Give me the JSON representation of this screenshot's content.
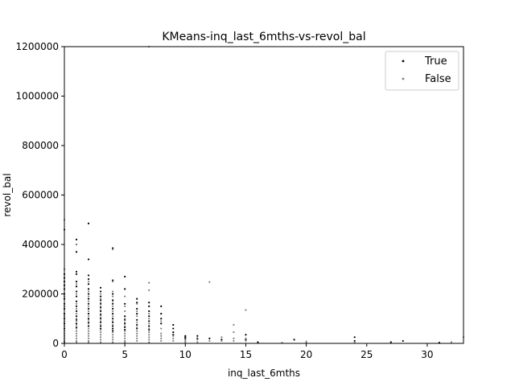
{
  "chart_data": {
    "type": "scatter",
    "title": "KMeans-inq_last_6mths-vs-revol_bal",
    "xlabel": "inq_last_6mths",
    "ylabel": "revol_bal",
    "xlim": [
      0,
      33
    ],
    "ylim": [
      0,
      1200000
    ],
    "x_ticks": [
      0,
      5,
      10,
      15,
      20,
      25,
      30
    ],
    "y_ticks": [
      0,
      200000,
      400000,
      600000,
      800000,
      1000000,
      1200000
    ],
    "x_tick_labels": [
      "0",
      "5",
      "10",
      "15",
      "20",
      "25",
      "30"
    ],
    "y_tick_labels": [
      "0",
      "200000",
      "400000",
      "600000",
      "800000",
      "1000000",
      "1200000"
    ],
    "grid": false,
    "legend_position": "top-right",
    "series": [
      {
        "name": "True",
        "color": "#000000",
        "points": [
          [
            0,
            460000
          ],
          [
            0,
            280000
          ],
          [
            0,
            265000
          ],
          [
            0,
            250000
          ],
          [
            0,
            235000
          ],
          [
            0,
            220000
          ],
          [
            0,
            200000
          ],
          [
            0,
            180000
          ],
          [
            0,
            160000
          ],
          [
            0,
            140000
          ],
          [
            0,
            120000
          ],
          [
            0,
            100000
          ],
          [
            0,
            80000
          ],
          [
            0,
            60000
          ],
          [
            1,
            420000
          ],
          [
            1,
            400000
          ],
          [
            1,
            370000
          ],
          [
            1,
            290000
          ],
          [
            1,
            280000
          ],
          [
            1,
            250000
          ],
          [
            1,
            230000
          ],
          [
            1,
            210000
          ],
          [
            1,
            190000
          ],
          [
            1,
            170000
          ],
          [
            1,
            150000
          ],
          [
            1,
            130000
          ],
          [
            1,
            110000
          ],
          [
            1,
            95000
          ],
          [
            1,
            80000
          ],
          [
            1,
            65000
          ],
          [
            2,
            485000
          ],
          [
            2,
            340000
          ],
          [
            2,
            275000
          ],
          [
            2,
            260000
          ],
          [
            2,
            240000
          ],
          [
            2,
            220000
          ],
          [
            2,
            200000
          ],
          [
            2,
            180000
          ],
          [
            2,
            160000
          ],
          [
            2,
            140000
          ],
          [
            2,
            120000
          ],
          [
            2,
            100000
          ],
          [
            2,
            85000
          ],
          [
            2,
            70000
          ],
          [
            3,
            225000
          ],
          [
            3,
            210000
          ],
          [
            3,
            190000
          ],
          [
            3,
            175000
          ],
          [
            3,
            160000
          ],
          [
            3,
            145000
          ],
          [
            3,
            130000
          ],
          [
            3,
            115000
          ],
          [
            3,
            100000
          ],
          [
            3,
            85000
          ],
          [
            3,
            70000
          ],
          [
            3,
            60000
          ],
          [
            4,
            385000
          ],
          [
            4,
            255000
          ],
          [
            4,
            200000
          ],
          [
            4,
            175000
          ],
          [
            4,
            160000
          ],
          [
            4,
            140000
          ],
          [
            4,
            120000
          ],
          [
            4,
            100000
          ],
          [
            4,
            85000
          ],
          [
            4,
            70000
          ],
          [
            4,
            60000
          ],
          [
            4,
            50000
          ],
          [
            5,
            270000
          ],
          [
            5,
            220000
          ],
          [
            5,
            160000
          ],
          [
            5,
            110000
          ],
          [
            5,
            95000
          ],
          [
            5,
            80000
          ],
          [
            5,
            65000
          ],
          [
            5,
            55000
          ],
          [
            6,
            180000
          ],
          [
            6,
            165000
          ],
          [
            6,
            140000
          ],
          [
            6,
            120000
          ],
          [
            6,
            95000
          ],
          [
            6,
            75000
          ],
          [
            6,
            60000
          ],
          [
            7,
            165000
          ],
          [
            7,
            150000
          ],
          [
            7,
            130000
          ],
          [
            7,
            110000
          ],
          [
            7,
            90000
          ],
          [
            7,
            70000
          ],
          [
            7,
            55000
          ],
          [
            8,
            150000
          ],
          [
            8,
            120000
          ],
          [
            8,
            100000
          ],
          [
            8,
            80000
          ],
          [
            9,
            75000
          ],
          [
            9,
            60000
          ],
          [
            9,
            45000
          ],
          [
            9,
            35000
          ],
          [
            10,
            30000
          ],
          [
            10,
            25000
          ],
          [
            10,
            20000
          ],
          [
            11,
            30000
          ],
          [
            11,
            20000
          ],
          [
            12,
            20000
          ],
          [
            13,
            15000
          ],
          [
            15,
            35000
          ],
          [
            15,
            15000
          ],
          [
            16,
            5000
          ],
          [
            19,
            15000
          ],
          [
            24,
            25000
          ],
          [
            24,
            10000
          ],
          [
            27,
            5000
          ],
          [
            28,
            10000
          ],
          [
            31,
            3000
          ]
        ]
      },
      {
        "name": "False",
        "color": "#808080",
        "points": [
          [
            0,
            500000
          ],
          [
            0,
            300000
          ],
          [
            0,
            190000
          ],
          [
            0,
            150000
          ],
          [
            0,
            110000
          ],
          [
            0,
            90000
          ],
          [
            0,
            70000
          ],
          [
            0,
            50000
          ],
          [
            0,
            40000
          ],
          [
            0,
            30000
          ],
          [
            0,
            20000
          ],
          [
            0,
            10000
          ],
          [
            0,
            5000
          ],
          [
            1,
            400000
          ],
          [
            1,
            240000
          ],
          [
            1,
            200000
          ],
          [
            1,
            160000
          ],
          [
            1,
            140000
          ],
          [
            1,
            120000
          ],
          [
            1,
            100000
          ],
          [
            1,
            90000
          ],
          [
            1,
            75000
          ],
          [
            1,
            60000
          ],
          [
            1,
            50000
          ],
          [
            1,
            40000
          ],
          [
            1,
            30000
          ],
          [
            1,
            20000
          ],
          [
            1,
            10000
          ],
          [
            1,
            5000
          ],
          [
            2,
            250000
          ],
          [
            2,
            210000
          ],
          [
            2,
            190000
          ],
          [
            2,
            170000
          ],
          [
            2,
            150000
          ],
          [
            2,
            130000
          ],
          [
            2,
            110000
          ],
          [
            2,
            95000
          ],
          [
            2,
            80000
          ],
          [
            2,
            60000
          ],
          [
            2,
            50000
          ],
          [
            2,
            40000
          ],
          [
            2,
            30000
          ],
          [
            2,
            20000
          ],
          [
            2,
            10000
          ],
          [
            2,
            5000
          ],
          [
            3,
            200000
          ],
          [
            3,
            180000
          ],
          [
            3,
            165000
          ],
          [
            3,
            150000
          ],
          [
            3,
            135000
          ],
          [
            3,
            120000
          ],
          [
            3,
            105000
          ],
          [
            3,
            90000
          ],
          [
            3,
            75000
          ],
          [
            3,
            55000
          ],
          [
            3,
            45000
          ],
          [
            3,
            35000
          ],
          [
            3,
            25000
          ],
          [
            3,
            15000
          ],
          [
            3,
            5000
          ],
          [
            4,
            380000
          ],
          [
            4,
            250000
          ],
          [
            4,
            210000
          ],
          [
            4,
            190000
          ],
          [
            4,
            170000
          ],
          [
            4,
            150000
          ],
          [
            4,
            130000
          ],
          [
            4,
            110000
          ],
          [
            4,
            90000
          ],
          [
            4,
            75000
          ],
          [
            4,
            55000
          ],
          [
            4,
            45000
          ],
          [
            4,
            35000
          ],
          [
            4,
            25000
          ],
          [
            4,
            15000
          ],
          [
            4,
            5000
          ],
          [
            5,
            190000
          ],
          [
            5,
            150000
          ],
          [
            5,
            130000
          ],
          [
            5,
            100000
          ],
          [
            5,
            85000
          ],
          [
            5,
            70000
          ],
          [
            5,
            50000
          ],
          [
            5,
            40000
          ],
          [
            5,
            30000
          ],
          [
            5,
            20000
          ],
          [
            5,
            10000
          ],
          [
            5,
            5000
          ],
          [
            6,
            160000
          ],
          [
            6,
            130000
          ],
          [
            6,
            110000
          ],
          [
            6,
            85000
          ],
          [
            6,
            65000
          ],
          [
            6,
            50000
          ],
          [
            6,
            40000
          ],
          [
            6,
            30000
          ],
          [
            6,
            20000
          ],
          [
            6,
            10000
          ],
          [
            7,
            1200000
          ],
          [
            7,
            245000
          ],
          [
            7,
            215000
          ],
          [
            7,
            120000
          ],
          [
            7,
            100000
          ],
          [
            7,
            80000
          ],
          [
            7,
            60000
          ],
          [
            7,
            45000
          ],
          [
            7,
            35000
          ],
          [
            7,
            25000
          ],
          [
            7,
            15000
          ],
          [
            7,
            5000
          ],
          [
            8,
            90000
          ],
          [
            8,
            60000
          ],
          [
            8,
            40000
          ],
          [
            8,
            30000
          ],
          [
            8,
            20000
          ],
          [
            8,
            10000
          ],
          [
            9,
            30000
          ],
          [
            9,
            20000
          ],
          [
            9,
            10000
          ],
          [
            10,
            15000
          ],
          [
            10,
            10000
          ],
          [
            10,
            5000
          ],
          [
            11,
            15000
          ],
          [
            11,
            5000
          ],
          [
            12,
            248000
          ],
          [
            12,
            10000
          ],
          [
            13,
            25000
          ],
          [
            13,
            10000
          ],
          [
            14,
            75000
          ],
          [
            14,
            45000
          ],
          [
            14,
            20000
          ],
          [
            14,
            10000
          ],
          [
            15,
            135000
          ],
          [
            15,
            20000
          ],
          [
            15,
            10000
          ],
          [
            18,
            3000
          ],
          [
            20,
            8000
          ],
          [
            20,
            3000
          ],
          [
            24,
            5000
          ],
          [
            32,
            5000
          ],
          [
            33,
            25000
          ]
        ]
      }
    ]
  }
}
